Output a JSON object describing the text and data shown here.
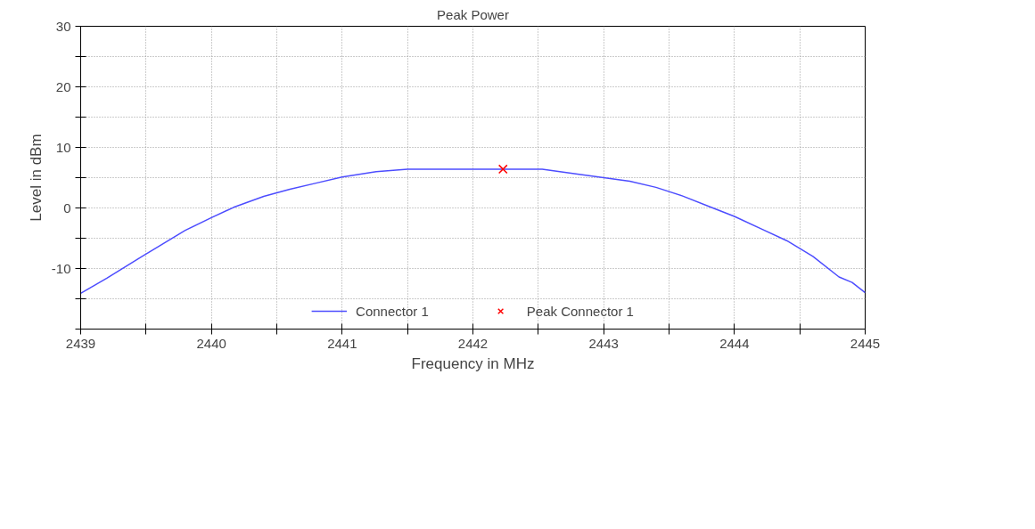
{
  "chart_data": {
    "type": "line",
    "title": "Peak Power",
    "xlabel": "Frequency in MHz",
    "ylabel": "Level in dBm",
    "xlim": [
      2439,
      2445
    ],
    "ylim": [
      -20,
      30
    ],
    "xticks": [
      2439,
      {
        "value": 2439.5,
        "label": null
      },
      2440,
      {
        "value": 2440.5,
        "label": null
      },
      2441,
      {
        "value": 2441.5,
        "label": null
      },
      2442,
      {
        "value": 2442.5,
        "label": null
      },
      2443,
      {
        "value": 2443.5,
        "label": null
      },
      2444,
      {
        "value": 2444.5,
        "label": null
      },
      2445
    ],
    "yticks": [
      {
        "value": -20,
        "label": null
      },
      {
        "value": -15,
        "label": null
      },
      -10,
      {
        "value": -5,
        "label": null
      },
      0,
      {
        "value": 5,
        "label": null
      },
      10,
      {
        "value": 15,
        "label": null
      },
      20,
      {
        "value": 25,
        "label": null
      },
      30
    ],
    "grid": true,
    "legend": "bottom",
    "series": [
      {
        "name": "Connector 1",
        "color": "#4d4dff",
        "type": "line",
        "marker": "none",
        "line_style": "solid",
        "x": [
          2439,
          2439.2,
          2439.47,
          2439.6,
          2439.8,
          2440,
          2440.17,
          2440.4,
          2440.6,
          2440.8,
          2441,
          2441.26,
          2441.5,
          2442,
          2442.53,
          2442.8,
          2443,
          2443.2,
          2443.4,
          2443.6,
          2443.8,
          2444,
          2444.2,
          2444.4,
          2444.6,
          2444.8,
          2444.9,
          2445
        ],
        "values": [
          -14.1,
          -11.6,
          -8,
          -6.3,
          -3.7,
          -1.6,
          0.1,
          1.9,
          3.1,
          4.1,
          5.1,
          6,
          6.4,
          6.4,
          6.4,
          5.6,
          5,
          4.4,
          3.4,
          2,
          0.3,
          -1.4,
          -3.4,
          -5.4,
          -8,
          -11.4,
          -12.3,
          -14
        ]
      },
      {
        "name": "Peak Connector 1",
        "color": "#ff0000",
        "type": "scatter",
        "marker": "cross",
        "x": [
          2442.23
        ],
        "values": [
          6.4
        ]
      }
    ]
  }
}
